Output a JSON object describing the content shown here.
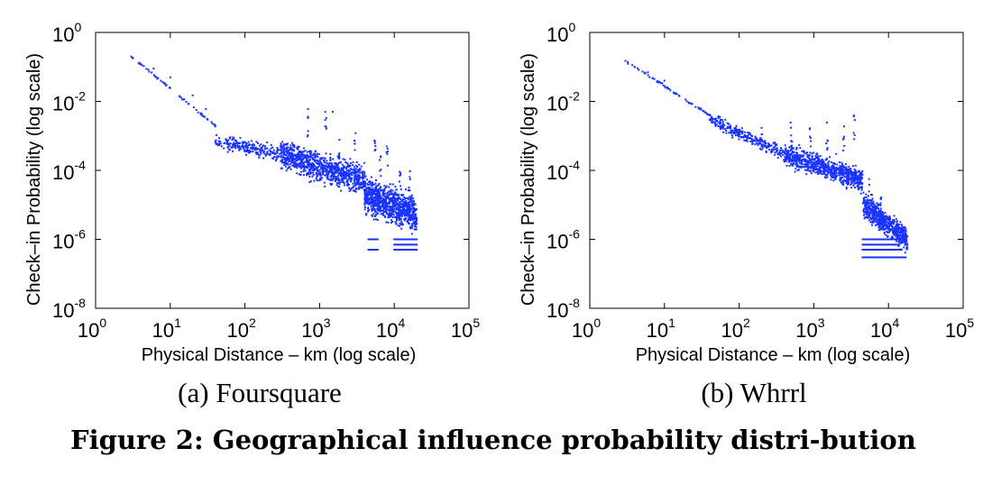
{
  "figure": {
    "caption_label": "Figure 2:",
    "caption_text": "Geographical influence probability distri-bution"
  },
  "colors": {
    "points": "#1a33ff",
    "axes": "#000000"
  },
  "chart_data": [
    {
      "type": "scatter",
      "id": "a",
      "subcaption": "(a) Foursquare",
      "xlabel": "Physical Distance – km (log scale)",
      "ylabel": "Check–in Probability (log scale)",
      "xscale": "log",
      "yscale": "log",
      "xlim": [
        1,
        100000
      ],
      "ylim": [
        1e-08,
        1
      ],
      "x_ticks": [
        {
          "base": "10",
          "exp": "0"
        },
        {
          "base": "10",
          "exp": "1"
        },
        {
          "base": "10",
          "exp": "2"
        },
        {
          "base": "10",
          "exp": "3"
        },
        {
          "base": "10",
          "exp": "4"
        },
        {
          "base": "10",
          "exp": "5"
        }
      ],
      "y_ticks": [
        {
          "base": "10",
          "exp": "0"
        },
        {
          "base": "10",
          "exp": "-2"
        },
        {
          "base": "10",
          "exp": "-4"
        },
        {
          "base": "10",
          "exp": "-6"
        },
        {
          "base": "10",
          "exp": "-8"
        }
      ],
      "grid": false,
      "points": [
        [
          3,
          0.2
        ],
        [
          6,
          0.09
        ],
        [
          10,
          0.05
        ],
        [
          20,
          0.015
        ],
        [
          30,
          0.006
        ],
        [
          40,
          0.002
        ],
        [
          60,
          0.0006
        ],
        [
          100,
          0.0005
        ],
        [
          200,
          0.0003
        ],
        [
          300,
          0.0005
        ],
        [
          500,
          0.0002
        ],
        [
          700,
          0.006
        ],
        [
          1000,
          0.00015
        ],
        [
          1500,
          0.005
        ],
        [
          2000,
          0.0001
        ],
        [
          4000,
          1e-05
        ],
        [
          5000,
          5e-06
        ],
        [
          10000,
          1e-05
        ],
        [
          15000,
          1e-05
        ],
        [
          20000,
          5e-07
        ]
      ],
      "scatter_cloud": [
        {
          "x_range": [
            3,
            40
          ],
          "y_at_xmin": 0.2,
          "y_at_xmax": 0.002,
          "count": 60,
          "spread_decades": 0.05
        },
        {
          "x_range": [
            40,
            300
          ],
          "y_at_xmin": 0.0007,
          "y_at_xmax": 0.0003,
          "count": 220,
          "spread_decades": 0.3
        },
        {
          "x_range": [
            300,
            4000
          ],
          "y_at_xmin": 0.0003,
          "y_at_xmax": 5e-05,
          "count": 900,
          "spread_decades": 0.6
        },
        {
          "x_range": [
            4000,
            20000
          ],
          "y_at_xmin": 2e-05,
          "y_at_xmax": 5e-06,
          "count": 900,
          "spread_decades": 0.7
        }
      ],
      "outlier_points": [
        [
          700,
          0.005
        ],
        [
          1200,
          0.006
        ],
        [
          1800,
          0.0008
        ],
        [
          3000,
          0.002
        ],
        [
          5500,
          0.0015
        ],
        [
          6500,
          0.0004
        ],
        [
          8000,
          0.0006
        ],
        [
          12000,
          0.0002
        ],
        [
          16000,
          0.0001
        ]
      ],
      "floor_levels": [
        {
          "x_range": [
            4500,
            6000
          ],
          "y": 5e-07
        },
        {
          "x_range": [
            4500,
            6000
          ],
          "y": 1e-06
        },
        {
          "x_range": [
            10000,
            20000
          ],
          "y": 5e-07
        },
        {
          "x_range": [
            10000,
            20000
          ],
          "y": 7e-07
        },
        {
          "x_range": [
            10000,
            20000
          ],
          "y": 1e-06
        }
      ]
    },
    {
      "type": "scatter",
      "id": "b",
      "subcaption": "(b) Whrrl",
      "xlabel": "Physical Distance – km (log scale)",
      "ylabel": "Check–in Probability (log scale)",
      "xscale": "log",
      "yscale": "log",
      "xlim": [
        1,
        100000
      ],
      "ylim": [
        1e-08,
        1
      ],
      "x_ticks": [
        {
          "base": "10",
          "exp": "0"
        },
        {
          "base": "10",
          "exp": "1"
        },
        {
          "base": "10",
          "exp": "2"
        },
        {
          "base": "10",
          "exp": "3"
        },
        {
          "base": "10",
          "exp": "4"
        },
        {
          "base": "10",
          "exp": "5"
        }
      ],
      "y_ticks": [
        {
          "base": "10",
          "exp": "0"
        },
        {
          "base": "10",
          "exp": "-2"
        },
        {
          "base": "10",
          "exp": "-4"
        },
        {
          "base": "10",
          "exp": "-6"
        },
        {
          "base": "10",
          "exp": "-8"
        }
      ],
      "grid": false,
      "points": [
        [
          3,
          0.15
        ],
        [
          6,
          0.07
        ],
        [
          10,
          0.04
        ],
        [
          20,
          0.01
        ],
        [
          40,
          0.004
        ],
        [
          60,
          0.002
        ],
        [
          100,
          0.0008
        ],
        [
          200,
          0.0004
        ],
        [
          500,
          0.00015
        ],
        [
          1000,
          0.0002
        ],
        [
          2000,
          0.0003
        ],
        [
          3000,
          0.0001
        ],
        [
          4000,
          3e-05
        ],
        [
          5000,
          2e-05
        ],
        [
          8000,
          3e-06
        ],
        [
          10000,
          2e-06
        ],
        [
          15000,
          1e-06
        ]
      ],
      "scatter_cloud": [
        {
          "x_range": [
            3,
            40
          ],
          "y_at_xmin": 0.15,
          "y_at_xmax": 0.004,
          "count": 60,
          "spread_decades": 0.05
        },
        {
          "x_range": [
            40,
            400
          ],
          "y_at_xmin": 0.003,
          "y_at_xmax": 0.0003,
          "count": 260,
          "spread_decades": 0.25
        },
        {
          "x_range": [
            400,
            4500
          ],
          "y_at_xmin": 0.0003,
          "y_at_xmax": 5e-05,
          "count": 750,
          "spread_decades": 0.45
        },
        {
          "x_range": [
            4500,
            18000
          ],
          "y_at_xmin": 1e-05,
          "y_at_xmax": 1e-06,
          "count": 600,
          "spread_decades": 0.5
        }
      ],
      "outlier_points": [
        [
          200,
          0.0025
        ],
        [
          500,
          0.003
        ],
        [
          900,
          0.003
        ],
        [
          1500,
          0.0025
        ],
        [
          2500,
          0.002
        ],
        [
          3500,
          0.004
        ],
        [
          5500,
          6e-05
        ],
        [
          6000,
          2e-05
        ],
        [
          8000,
          2e-05
        ]
      ],
      "floor_levels": [
        {
          "x_range": [
            4500,
            17000
          ],
          "y": 3e-07
        },
        {
          "x_range": [
            4500,
            15000
          ],
          "y": 5e-07
        },
        {
          "x_range": [
            4500,
            14000
          ],
          "y": 7e-07
        },
        {
          "x_range": [
            4500,
            13000
          ],
          "y": 1e-06
        }
      ]
    }
  ]
}
